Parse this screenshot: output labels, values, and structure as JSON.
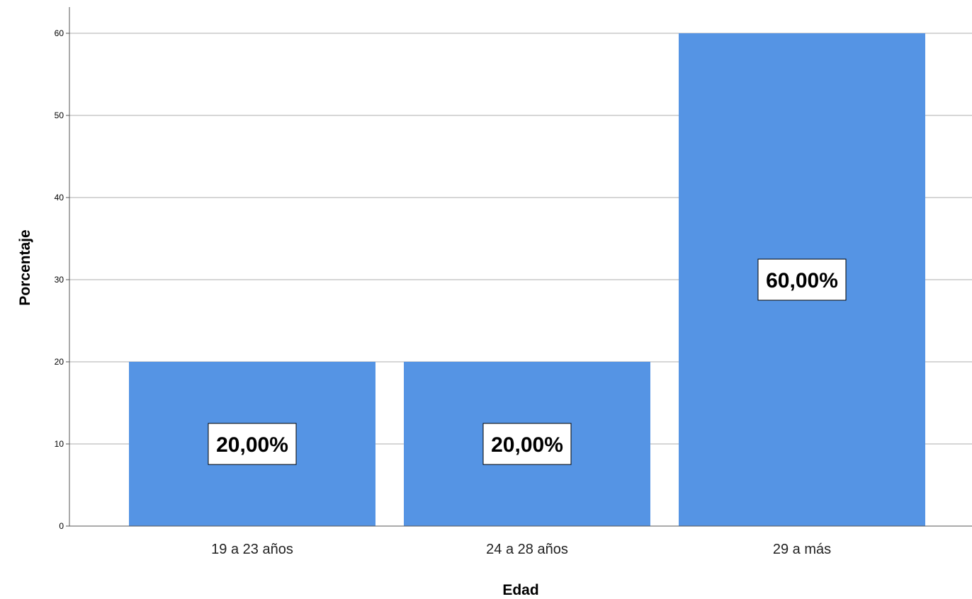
{
  "chart_data": {
    "type": "bar",
    "categories": [
      "19 a 23 años",
      "24 a 28 años",
      "29 a más"
    ],
    "values": [
      20,
      20,
      60
    ],
    "data_labels": [
      "20,00%",
      "20,00%",
      "60,00%"
    ],
    "xlabel": "Edad",
    "ylabel": "Porcentaje",
    "ylim": [
      0,
      63
    ],
    "yticks": [
      0,
      10,
      20,
      30,
      40,
      50,
      60
    ],
    "grid": true,
    "legend": "none",
    "bar_color": "#5594e4",
    "gridline_color": "#c8c8c8",
    "label_box_fill": "#ffffff"
  }
}
